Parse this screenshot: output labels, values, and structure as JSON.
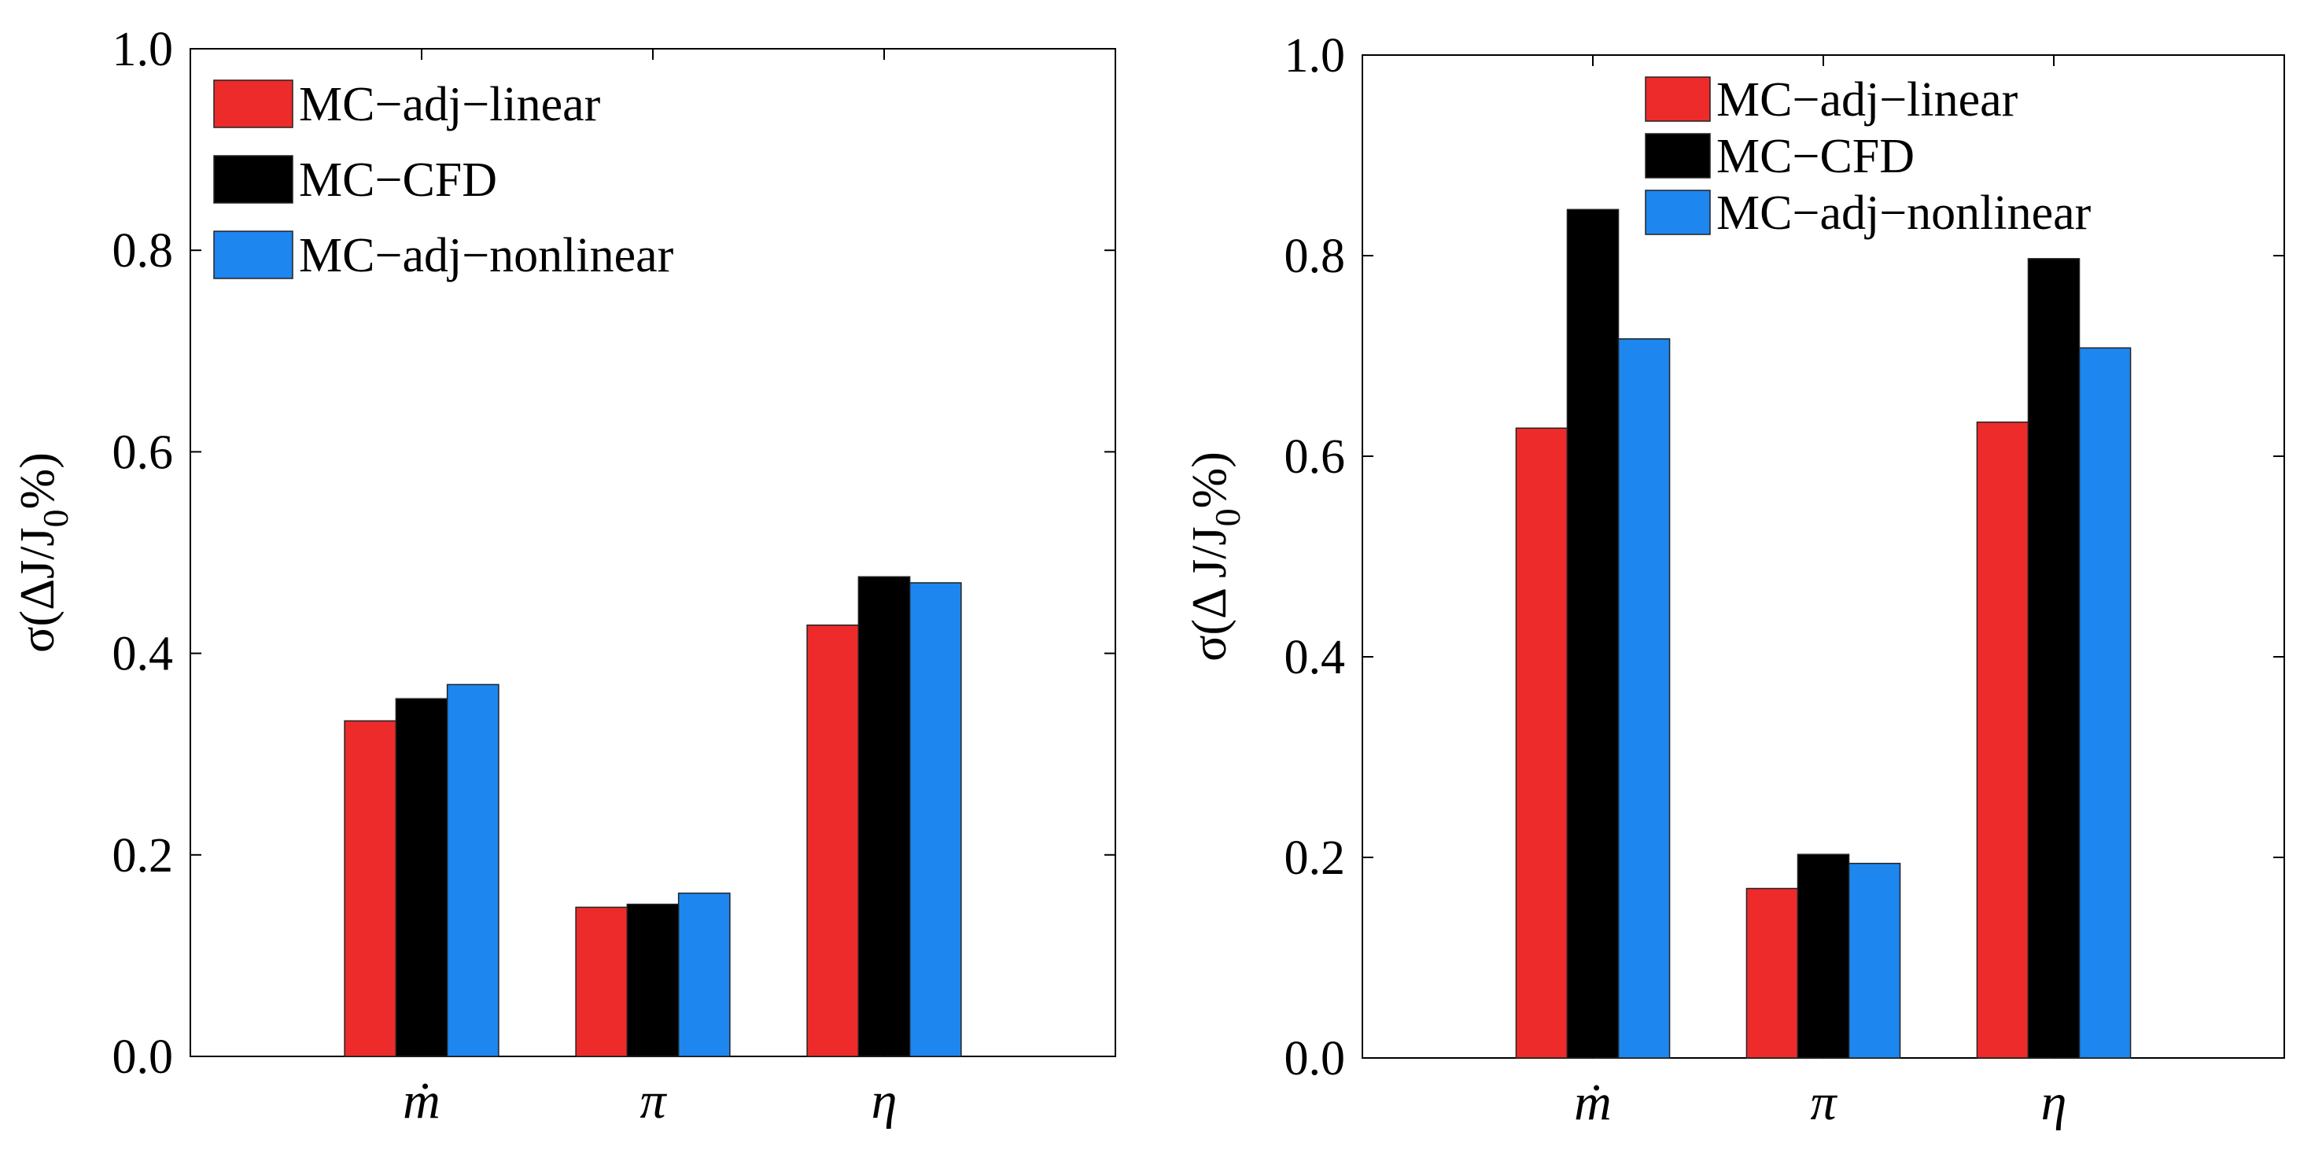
{
  "chart_data": [
    {
      "type": "bar",
      "categories": [
        "ṁ",
        "π",
        "η"
      ],
      "series": [
        {
          "name": "MC−adj−linear",
          "color": "#ee2b2b",
          "values": [
            0.333,
            0.148,
            0.428
          ]
        },
        {
          "name": "MC−CFD",
          "color": "#000000",
          "values": [
            0.355,
            0.151,
            0.476
          ]
        },
        {
          "name": "MC−adj−nonlinear",
          "color": "#1e86ef",
          "values": [
            0.369,
            0.162,
            0.47
          ]
        }
      ],
      "ylabel": "σ(ΔJ/J₀%)",
      "ylabel_parts": {
        "prefix": "σ(ΔJ/J",
        "sub": "0",
        "suffix": "%)"
      },
      "ylim": [
        0,
        1.0
      ],
      "yticks": [
        0.0,
        0.2,
        0.4,
        0.6,
        0.8,
        1.0
      ],
      "ytick_labels": [
        "0.0",
        "0.2",
        "0.4",
        "0.6",
        "0.8",
        "1.0"
      ],
      "legend": "top-left",
      "grid": false
    },
    {
      "type": "bar",
      "categories": [
        "ṁ",
        "π",
        "η"
      ],
      "series": [
        {
          "name": "MC−adj−linear",
          "color": "#ee2b2b",
          "values": [
            0.628,
            0.169,
            0.634
          ]
        },
        {
          "name": "MC−CFD",
          "color": "#000000",
          "values": [
            0.846,
            0.203,
            0.797
          ]
        },
        {
          "name": "MC−adj−nonlinear",
          "color": "#1e86ef",
          "values": [
            0.717,
            0.194,
            0.708
          ]
        }
      ],
      "ylabel": "σ(Δ J/J₀%)",
      "ylabel_parts": {
        "prefix": "σ(Δ J/J",
        "sub": "0",
        "suffix": "%)"
      },
      "ylim": [
        0,
        1.0
      ],
      "yticks": [
        0.0,
        0.2,
        0.4,
        0.6,
        0.8,
        1.0
      ],
      "ytick_labels": [
        "0.0",
        "0.2",
        "0.4",
        "0.6",
        "0.8",
        "1.0"
      ],
      "legend": "top-right",
      "grid": false
    }
  ]
}
